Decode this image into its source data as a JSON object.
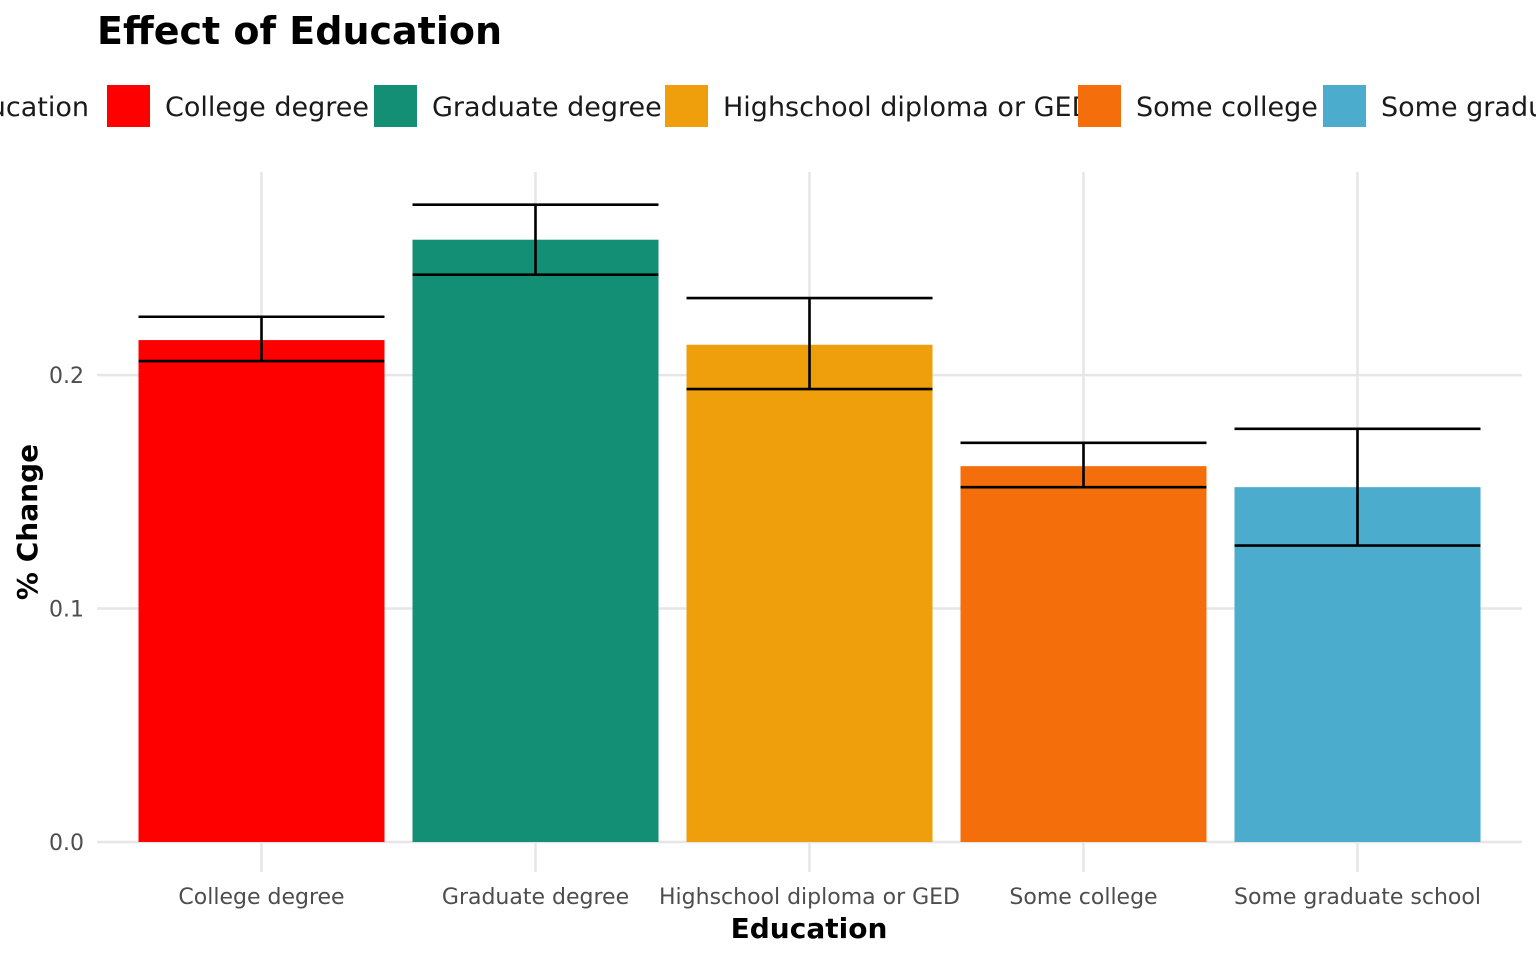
{
  "chart_data": {
    "type": "bar",
    "title": "Effect of Education",
    "xlabel": "Education",
    "ylabel": "% Change",
    "legend": {
      "title": "Education",
      "position": "top"
    },
    "categories": [
      "College degree",
      "Graduate degree",
      "Highschool diploma or GED",
      "Some college",
      "Some graduate school"
    ],
    "values": [
      0.215,
      0.258,
      0.213,
      0.161,
      0.152
    ],
    "error_low": [
      0.206,
      0.243,
      0.194,
      0.152,
      0.127
    ],
    "error_high": [
      0.225,
      0.273,
      0.233,
      0.171,
      0.177
    ],
    "colors": [
      "#ff0000",
      "#138f75",
      "#ee9f0b",
      "#f46f0b",
      "#4bacce"
    ],
    "yticks": [
      0.0,
      0.1,
      0.2
    ],
    "ytick_labels": [
      "0.0",
      "0.1",
      "0.2"
    ],
    "ylim": [
      0.0,
      0.287
    ],
    "grid": true
  }
}
